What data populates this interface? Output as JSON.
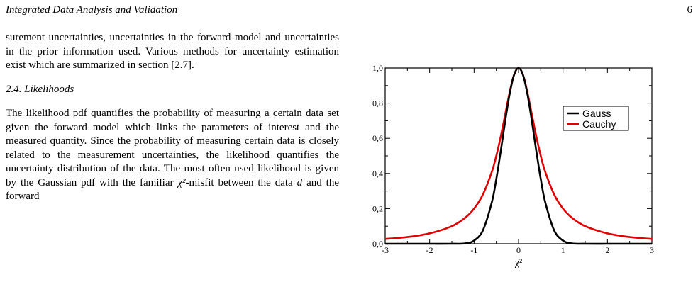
{
  "running_head": {
    "title": "Integrated Data Analysis and Validation",
    "page_number": "6"
  },
  "body": {
    "para_a": "surement uncertainties, uncertainties in the forward model and uncertainties in the prior information used. Various methods for uncertainty estimation exist which are summarized in section [2.7].",
    "section_heading": "2.4.  Likelihoods",
    "para_b_pre": "The likelihood pdf quantifies the probability of measuring a certain data set given the forward model which links the parameters of interest and the measured quantity. Since the probability of measuring certain data is closely related to the measurement uncertainties, the likelihood quantifies the uncertainty distribution of the data.   The most often used likelihood is given by the Gaussian pdf with the familiar ",
    "chi2": "χ²",
    "para_b_mid": "-misfit between the data ",
    "var_d": "d",
    "para_b_post": " and the forward"
  },
  "chart_data": {
    "type": "line",
    "title": "",
    "xlabel": "χ²",
    "ylabel": "",
    "xlim": [
      -3,
      3
    ],
    "ylim": [
      0,
      1
    ],
    "xticks": [
      "-3",
      "-2",
      "-1",
      "0",
      "1",
      "2",
      "3"
    ],
    "yticks": [
      "0,0",
      "0,2",
      "0,4",
      "0,6",
      "0,8",
      "1,0"
    ],
    "grid": false,
    "legend_position": "top-right",
    "series": [
      {
        "name": "Gauss",
        "color": "#000000",
        "x": [
          -3,
          -2.5,
          -2,
          -1.5,
          -1.2,
          -1.0,
          -0.8,
          -0.6,
          -0.5,
          -0.4,
          -0.3,
          -0.2,
          -0.1,
          0,
          0.1,
          0.2,
          0.3,
          0.4,
          0.5,
          0.6,
          0.8,
          1.0,
          1.2,
          1.5,
          2,
          2.5,
          3
        ],
        "y": [
          0.0,
          0.0,
          0.0,
          0.0,
          0.002,
          0.018,
          0.077,
          0.237,
          0.368,
          0.527,
          0.698,
          0.852,
          0.961,
          1.0,
          0.961,
          0.852,
          0.698,
          0.527,
          0.368,
          0.237,
          0.077,
          0.018,
          0.002,
          0.0,
          0.0,
          0.0,
          0.0
        ]
      },
      {
        "name": "Cauchy",
        "color": "#e00000",
        "x": [
          -3,
          -2.5,
          -2,
          -1.5,
          -1.2,
          -1.0,
          -0.8,
          -0.6,
          -0.5,
          -0.4,
          -0.3,
          -0.2,
          -0.1,
          0,
          0.1,
          0.2,
          0.3,
          0.4,
          0.5,
          0.6,
          0.8,
          1.0,
          1.2,
          1.5,
          2,
          2.5,
          3
        ],
        "y": [
          0.027,
          0.038,
          0.059,
          0.1,
          0.148,
          0.2,
          0.281,
          0.41,
          0.5,
          0.61,
          0.735,
          0.862,
          0.962,
          1.0,
          0.962,
          0.862,
          0.735,
          0.61,
          0.5,
          0.41,
          0.281,
          0.2,
          0.148,
          0.1,
          0.059,
          0.038,
          0.027
        ]
      }
    ]
  }
}
